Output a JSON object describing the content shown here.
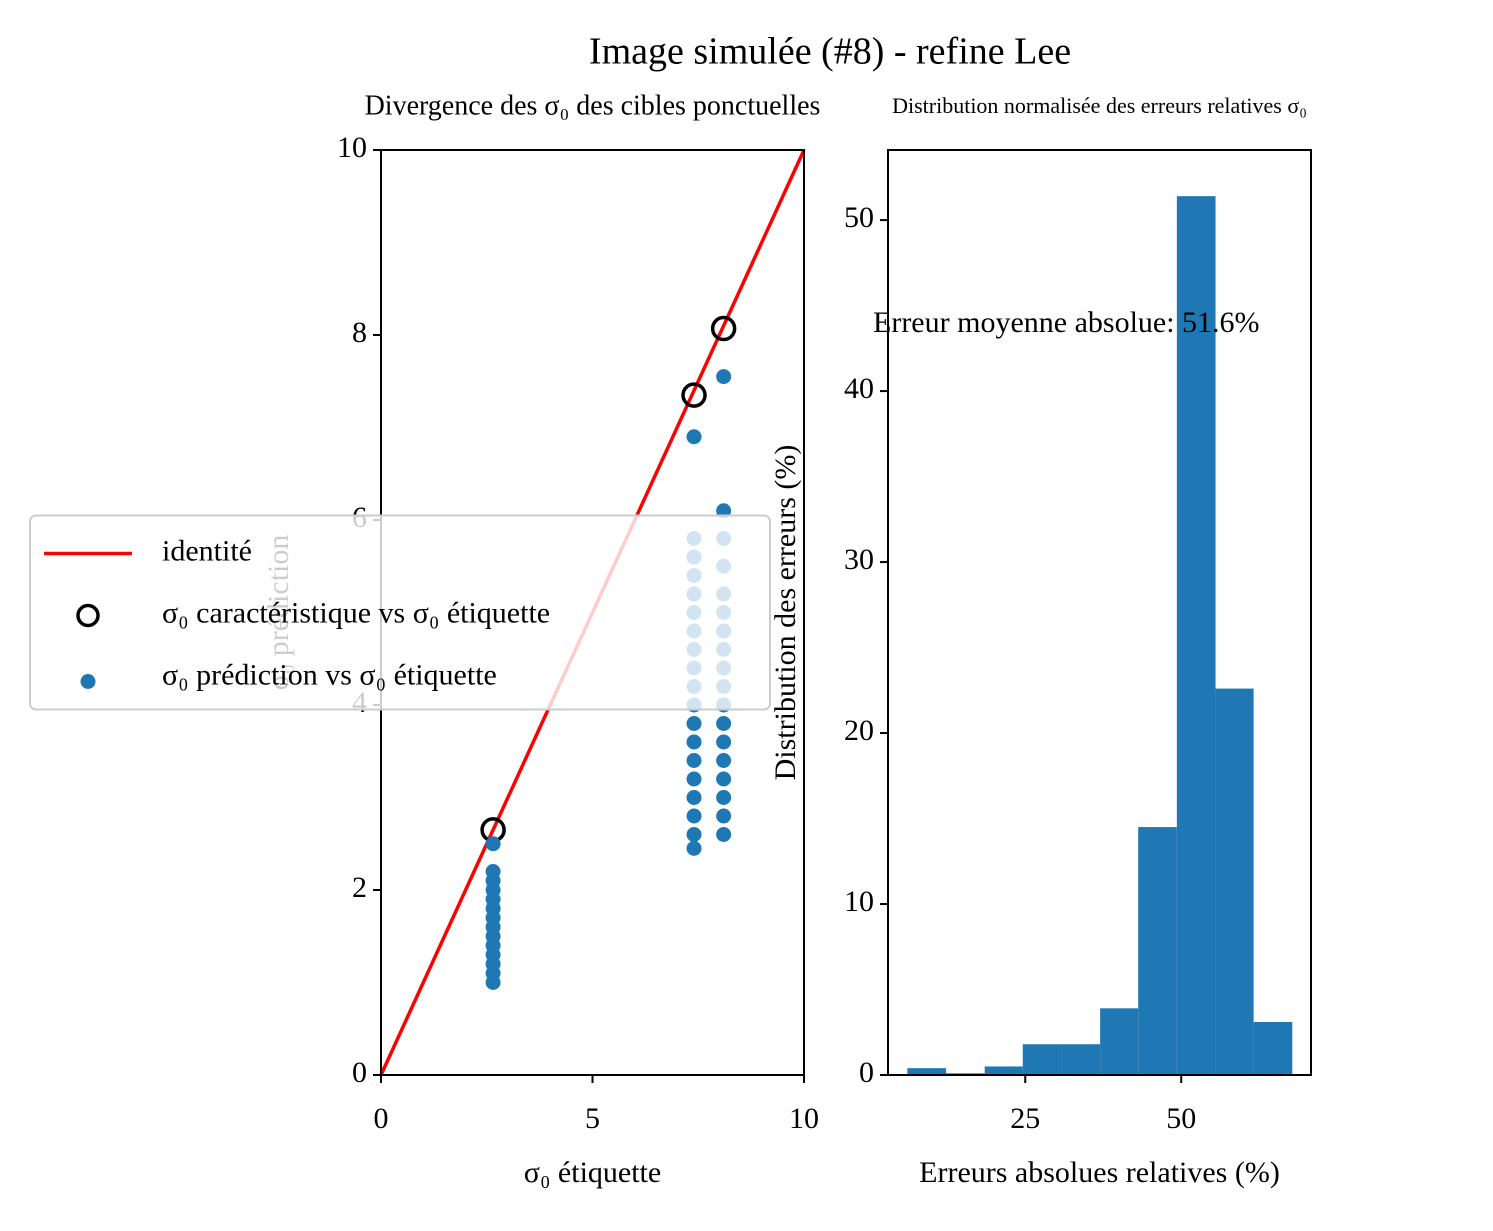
{
  "title": "Image simulée (#8) - refine Lee",
  "chart_data": [
    {
      "type": "scatter",
      "title": "Divergence des σ₀ des cibles ponctuelles",
      "xlabel": "σ₀ étiquette",
      "ylabel": "σ₀ prédiction",
      "xlim": [
        0,
        10
      ],
      "ylim": [
        0,
        10
      ],
      "xticks": [
        0,
        5,
        10
      ],
      "yticks": [
        0,
        2,
        4,
        6,
        8,
        10
      ],
      "legend": "center left",
      "series": [
        {
          "name": "identité",
          "type": "line",
          "color": "#ff0000",
          "x": [
            0,
            10
          ],
          "y": [
            0,
            10
          ]
        },
        {
          "name": "σ₀ caractéristique vs σ₀ étiquette",
          "marker": "open-circle",
          "color": "#000000",
          "x": [
            2.65,
            7.4,
            8.1
          ],
          "y": [
            2.65,
            7.35,
            8.07
          ]
        },
        {
          "name": "σ₀ prédiction vs σ₀ étiquette",
          "marker": "dot",
          "color": "#1f77b4",
          "x": [
            2.65,
            2.65,
            2.65,
            2.65,
            2.65,
            2.65,
            2.65,
            2.65,
            2.65,
            2.65,
            2.65,
            2.65,
            2.65,
            2.65,
            7.4,
            7.4,
            7.4,
            7.4,
            7.4,
            7.4,
            7.4,
            7.4,
            7.4,
            7.4,
            7.4,
            7.4,
            7.4,
            7.4,
            7.4,
            7.4,
            7.4,
            7.4,
            7.4,
            8.1,
            8.1,
            8.1,
            8.1,
            8.1,
            8.1,
            8.1,
            8.1,
            8.1,
            8.1,
            8.1,
            8.1,
            8.1,
            8.1,
            8.1,
            8.1,
            8.1,
            8.1
          ],
          "y": [
            2.5,
            2.2,
            2.1,
            2.0,
            1.9,
            1.8,
            1.7,
            1.6,
            1.5,
            1.4,
            1.3,
            1.2,
            1.1,
            1.0,
            6.9,
            5.8,
            5.6,
            5.4,
            5.2,
            5.0,
            4.8,
            4.6,
            4.4,
            4.2,
            4.0,
            3.8,
            3.6,
            3.4,
            3.2,
            3.0,
            2.8,
            2.6,
            2.45,
            7.55,
            6.1,
            5.8,
            5.5,
            5.2,
            5.0,
            4.8,
            4.6,
            4.4,
            4.2,
            4.0,
            3.8,
            3.6,
            3.4,
            3.2,
            3.0,
            2.8,
            2.6
          ]
        }
      ]
    },
    {
      "type": "histogram",
      "title": "Distribution normalisée des erreurs relatives σ₀",
      "xlabel": "Erreurs absolues relatives (%)",
      "ylabel": "Distribution des erreurs (%)",
      "xlim": [
        3.0,
        70.8
      ],
      "ylim": [
        0,
        54.1
      ],
      "xticks": [
        25,
        50
      ],
      "yticks": [
        0,
        10,
        20,
        30,
        40,
        50
      ],
      "bins": [
        6.1,
        12.3,
        18.5,
        24.6,
        30.8,
        37.0,
        43.1,
        49.3,
        55.5,
        61.6,
        67.8
      ],
      "values": [
        0.4,
        0.1,
        0.5,
        1.8,
        1.8,
        3.9,
        14.5,
        51.4,
        22.6,
        3.1
      ],
      "color": "#1f77b4",
      "annotation": "Erreur moyenne absolue: 51.6%"
    }
  ]
}
